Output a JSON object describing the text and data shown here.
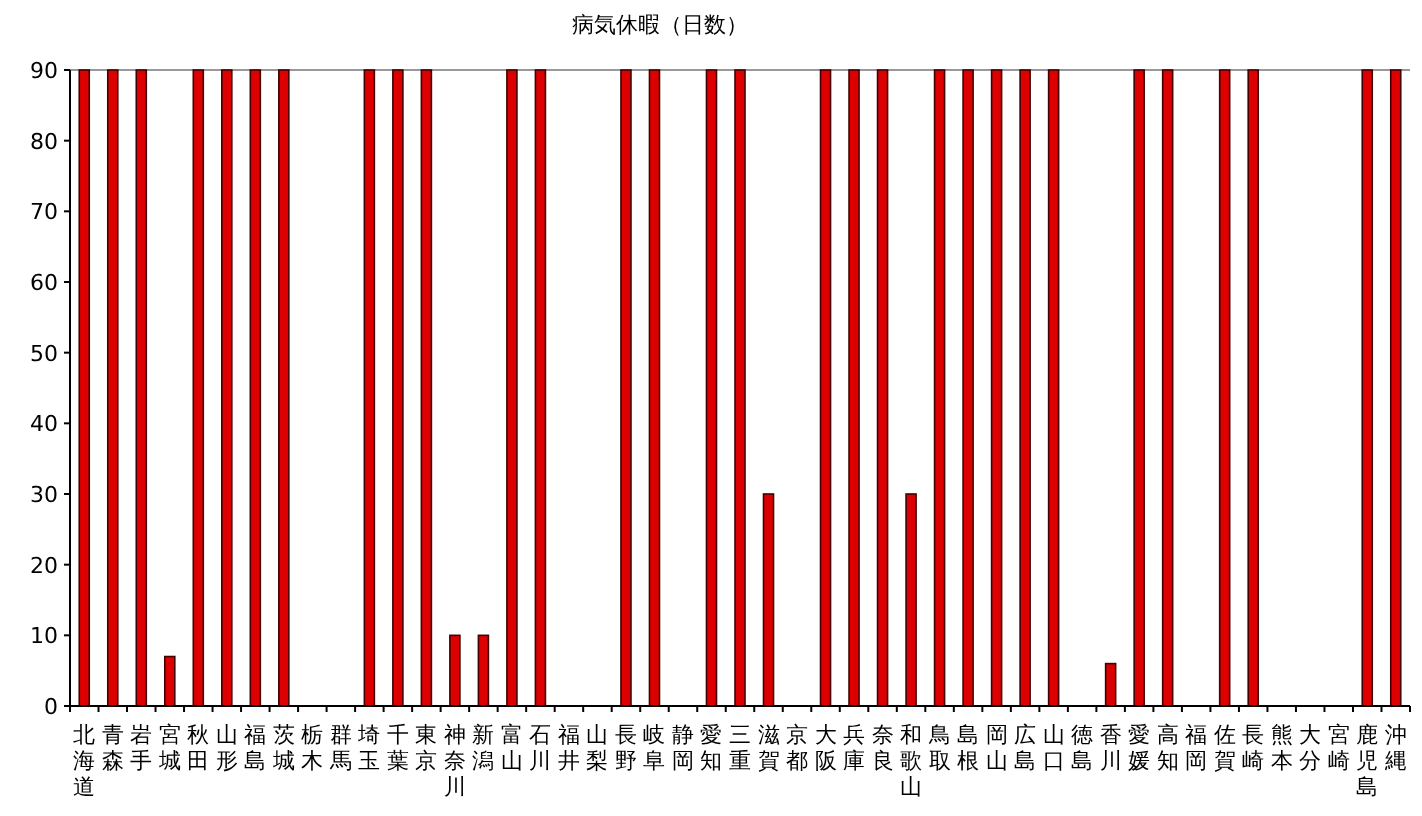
{
  "chart_data": {
    "type": "bar",
    "title": "病気休暇（日数）",
    "categories": [
      "北海道",
      "青森",
      "岩手",
      "宮城",
      "秋田",
      "山形",
      "福島",
      "茨城",
      "栃木",
      "群馬",
      "埼玉",
      "千葉",
      "東京",
      "神奈川",
      "新潟",
      "富山",
      "石川",
      "福井",
      "山梨",
      "長野",
      "岐阜",
      "静岡",
      "愛知",
      "三重",
      "滋賀",
      "京都",
      "大阪",
      "兵庫",
      "奈良",
      "和歌山",
      "鳥取",
      "島根",
      "岡山",
      "広島",
      "山口",
      "徳島",
      "香川",
      "愛媛",
      "高知",
      "福岡",
      "佐賀",
      "長崎",
      "熊本",
      "大分",
      "宮崎",
      "鹿児島",
      "沖縄"
    ],
    "values": [
      90,
      90,
      90,
      7,
      90,
      90,
      90,
      90,
      0,
      0,
      90,
      90,
      90,
      10,
      10,
      90,
      90,
      0,
      0,
      90,
      90,
      0,
      90,
      90,
      30,
      0,
      90,
      90,
      90,
      30,
      90,
      90,
      90,
      90,
      90,
      0,
      6,
      90,
      90,
      0,
      90,
      90,
      0,
      0,
      0,
      90,
      90
    ],
    "color": "#dd0000",
    "ylim": [
      0,
      90
    ],
    "yticks": [
      0,
      10,
      20,
      30,
      40,
      50,
      60,
      70,
      80,
      90
    ],
    "grid": false
  }
}
